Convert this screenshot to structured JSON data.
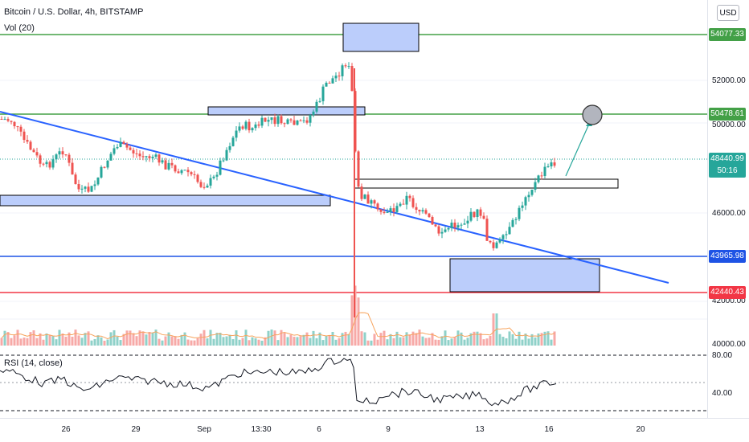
{
  "header": {
    "symbol_line": "Bitcoin / U.S. Dollar, 4h, BITSTAMP",
    "volume_line": "Vol (20)",
    "currency_button": "USD"
  },
  "price_axis": {
    "labels": [
      "52000.00",
      "50000.00",
      "46000.00",
      "42000.00",
      "40000.00"
    ],
    "tags": [
      {
        "name": "price-tag-54077",
        "text": "54077.33",
        "color": "#43a047"
      },
      {
        "name": "price-tag-50478",
        "text": "50478.61",
        "color": "#43a047"
      },
      {
        "name": "price-tag-current",
        "text": "48440.99",
        "color": "#26a69a"
      },
      {
        "name": "price-tag-countdown",
        "text": "50:16",
        "color": "#26a69a"
      },
      {
        "name": "price-tag-43965",
        "text": "43965.98",
        "color": "#1e53e5"
      },
      {
        "name": "price-tag-42440",
        "text": "42440.43",
        "color": "#f23645"
      }
    ]
  },
  "rsi": {
    "title": "RSI (14, close)",
    "axis_labels": [
      "80.00",
      "40.00"
    ]
  },
  "time_axis": {
    "labels": [
      "26",
      "29",
      "Sep",
      "13:30",
      "6",
      "9",
      "13",
      "16",
      "20"
    ]
  },
  "colors": {
    "up": "#26a69a",
    "down": "#ef5350",
    "support_green": "#43a047",
    "trendline": "#2962ff",
    "box_fill": "#bbcdfb"
  }
}
